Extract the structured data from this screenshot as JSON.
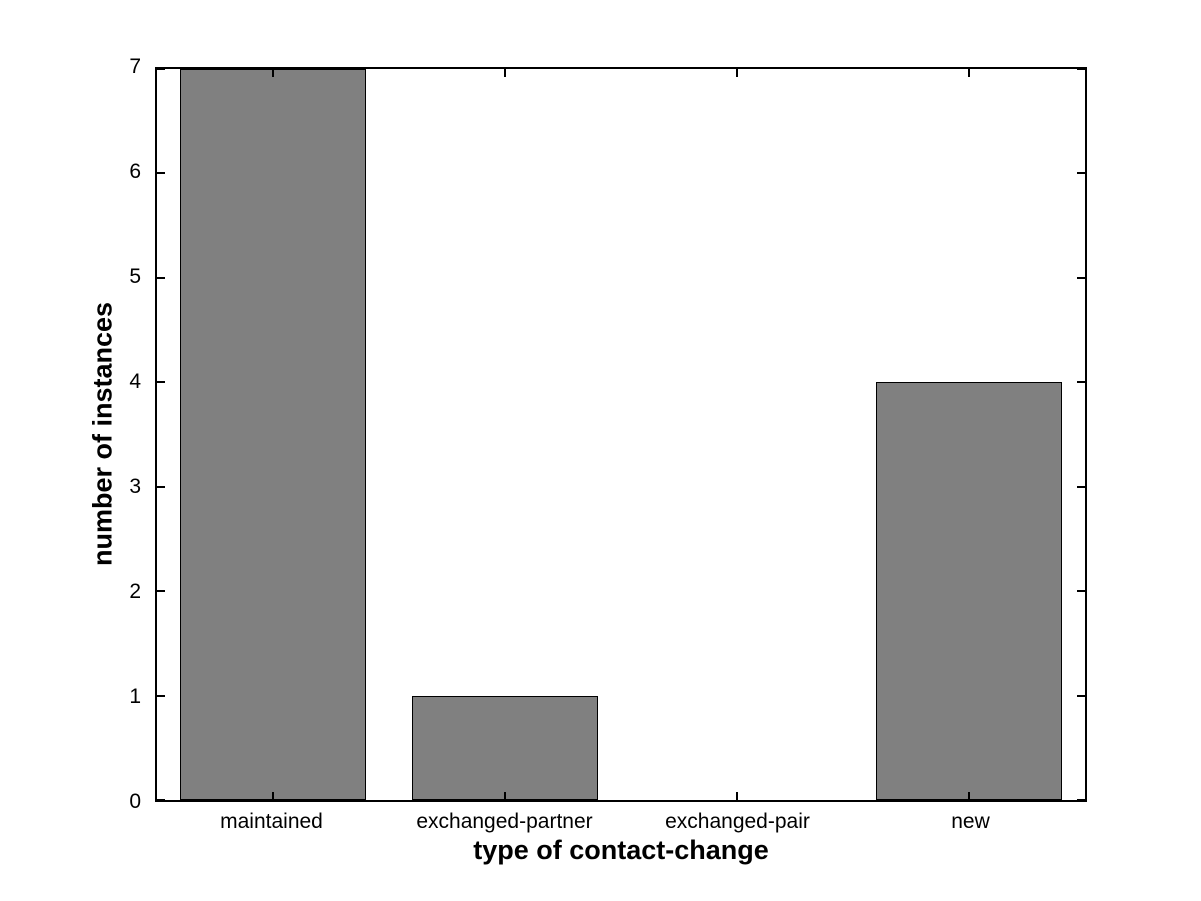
{
  "chart_data": {
    "type": "bar",
    "title": "",
    "xlabel": "type of contact-change",
    "ylabel": "number of instances",
    "categories": [
      "maintained",
      "exchanged-partner",
      "exchanged-pair",
      "new"
    ],
    "values": [
      7,
      1,
      0,
      4
    ],
    "ylim": [
      0,
      7
    ],
    "yticks": [
      0,
      1,
      2,
      3,
      4,
      5,
      6,
      7
    ],
    "bar_width_fraction": 0.8,
    "bar_fill_color": "#808080",
    "bar_edge_color": "#000000",
    "axis_color": "#000000",
    "background_color": "#ffffff",
    "grid": false,
    "legend": null
  }
}
